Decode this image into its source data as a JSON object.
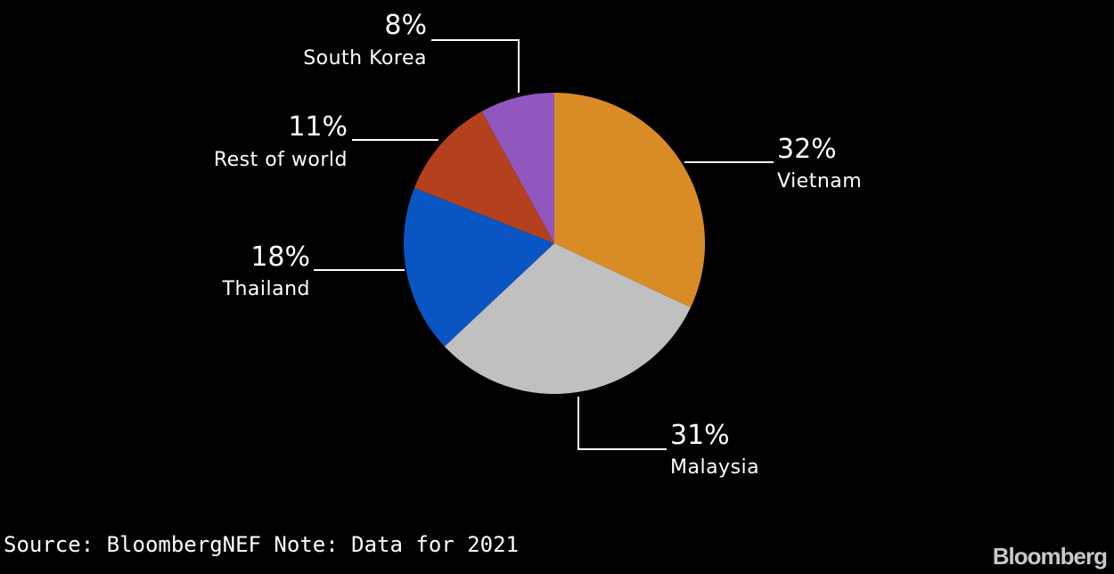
{
  "chart_data": {
    "type": "pie",
    "start_angle_deg": 0,
    "direction": "clockwise",
    "slices": [
      {
        "label": "Vietnam",
        "value": 32,
        "value_label": "32%",
        "color": "#d98b25"
      },
      {
        "label": "Malaysia",
        "value": 31,
        "value_label": "31%",
        "color": "#c0c0c0"
      },
      {
        "label": "Thailand",
        "value": 18,
        "value_label": "18%",
        "color": "#0a55c4"
      },
      {
        "label": "Rest of world",
        "value": 11,
        "value_label": "11%",
        "color": "#b4401d"
      },
      {
        "label": "South Korea",
        "value": 8,
        "value_label": "8%",
        "color": "#9256bf"
      }
    ]
  },
  "footer": {
    "source": "Source: BloombergNEF Note: Data for 2021",
    "brand": "Bloomberg"
  }
}
